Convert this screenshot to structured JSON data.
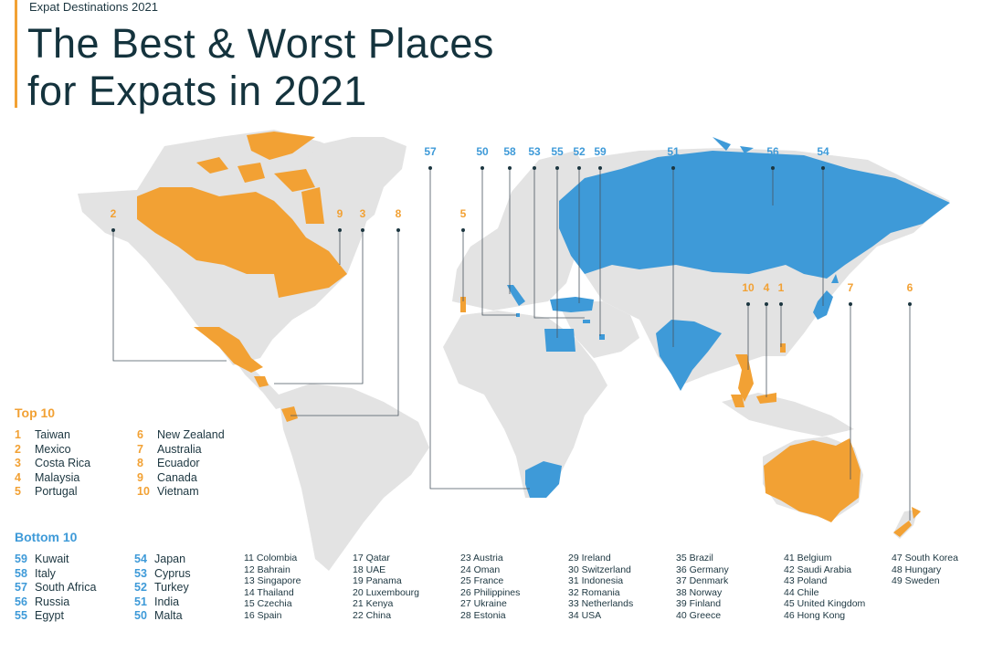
{
  "header": {
    "kicker": "Expat Destinations 2021",
    "title_line1": "The Best & Worst Places",
    "title_line2": "for Expats in 2021"
  },
  "colors": {
    "top": "#f2a134",
    "bottom": "#3e9ad8",
    "land": "#e3e3e3",
    "text": "#1c3640",
    "leader": "#4a5560",
    "accent": "#f2a134"
  },
  "map_labels": {
    "top": [
      "2",
      "9",
      "3",
      "8",
      "5",
      "10",
      "4",
      "1",
      "7",
      "6"
    ],
    "bottom": [
      "57",
      "50",
      "58",
      "53",
      "55",
      "52",
      "59",
      "51",
      "56",
      "54"
    ]
  },
  "top10": {
    "title": "Top 10",
    "items": [
      {
        "rank": "1",
        "name": "Taiwan"
      },
      {
        "rank": "2",
        "name": "Mexico"
      },
      {
        "rank": "3",
        "name": "Costa Rica"
      },
      {
        "rank": "4",
        "name": "Malaysia"
      },
      {
        "rank": "5",
        "name": "Portugal"
      },
      {
        "rank": "6",
        "name": "New Zealand"
      },
      {
        "rank": "7",
        "name": "Australia"
      },
      {
        "rank": "8",
        "name": "Ecuador"
      },
      {
        "rank": "9",
        "name": "Canada"
      },
      {
        "rank": "10",
        "name": "Vietnam"
      }
    ]
  },
  "bottom10": {
    "title": "Bottom 10",
    "items": [
      {
        "rank": "59",
        "name": "Kuwait"
      },
      {
        "rank": "58",
        "name": "Italy"
      },
      {
        "rank": "57",
        "name": "South Africa"
      },
      {
        "rank": "56",
        "name": "Russia"
      },
      {
        "rank": "55",
        "name": "Egypt"
      },
      {
        "rank": "54",
        "name": "Japan"
      },
      {
        "rank": "53",
        "name": "Cyprus"
      },
      {
        "rank": "52",
        "name": "Turkey"
      },
      {
        "rank": "51",
        "name": "India"
      },
      {
        "rank": "50",
        "name": "Malta"
      }
    ]
  },
  "rest": [
    [
      "11 Colombia",
      "12 Bahrain",
      "13 Singapore",
      "14 Thailand",
      "15 Czechia",
      "16 Spain"
    ],
    [
      "17 Qatar",
      "18 UAE",
      "19 Panama",
      "20 Luxembourg",
      "21 Kenya",
      "22 China"
    ],
    [
      "23 Austria",
      "24 Oman",
      "25 France",
      "26 Philippines",
      "27 Ukraine",
      "28 Estonia"
    ],
    [
      "29 Ireland",
      "30 Switzerland",
      "31 Indonesia",
      "32 Romania",
      "33 Netherlands",
      "34 USA"
    ],
    [
      "35 Brazil",
      "36 Germany",
      "37 Denmark",
      "38 Norway",
      "39 Finland",
      "40 Greece"
    ],
    [
      "41 Belgium",
      "42 Saudi Arabia",
      "43 Poland",
      "44 Chile",
      "45 United Kingdom",
      "46 Hong Kong"
    ],
    [
      "47 South Korea",
      "48 Hungary",
      "49 Sweden"
    ]
  ]
}
